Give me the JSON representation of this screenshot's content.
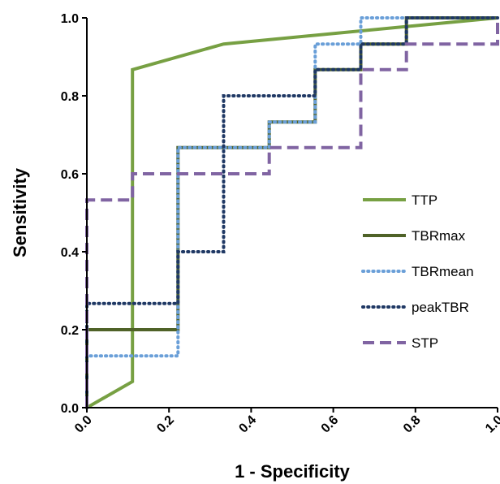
{
  "chart_data": {
    "type": "line",
    "title": "",
    "xlabel": "1 - Specificity",
    "ylabel": "Sensitivity",
    "xlim": [
      0,
      1
    ],
    "ylim": [
      0,
      1
    ],
    "xticks": [
      "0.0",
      "0.2",
      "0.4",
      "0.6",
      "0.8",
      "1.0"
    ],
    "yticks": [
      "0.0",
      "0.2",
      "0.4",
      "0.6",
      "0.8",
      "1.0"
    ],
    "grid": false,
    "legend_position": "right",
    "series": [
      {
        "name": "TTP",
        "color": "#77a043",
        "style": "solid",
        "points": [
          [
            0,
            0
          ],
          [
            0.111,
            0.067
          ],
          [
            0.111,
            0.867
          ],
          [
            0.333,
            0.933
          ],
          [
            1.0,
            1.0
          ]
        ]
      },
      {
        "name": "TBRmax",
        "color": "#4f6228",
        "style": "solid",
        "points": [
          [
            0,
            0
          ],
          [
            0,
            0.2
          ],
          [
            0.222,
            0.2
          ],
          [
            0.222,
            0.667
          ],
          [
            0.444,
            0.667
          ],
          [
            0.444,
            0.733
          ],
          [
            0.556,
            0.733
          ],
          [
            0.556,
            0.867
          ],
          [
            0.667,
            0.867
          ],
          [
            0.667,
            0.933
          ],
          [
            0.778,
            0.933
          ],
          [
            0.778,
            1.0
          ],
          [
            1.0,
            1.0
          ]
        ]
      },
      {
        "name": "TBRmean",
        "color": "#6a9fd8",
        "style": "dotted",
        "points": [
          [
            0,
            0
          ],
          [
            0,
            0.133
          ],
          [
            0.222,
            0.133
          ],
          [
            0.222,
            0.667
          ],
          [
            0.444,
            0.667
          ],
          [
            0.444,
            0.733
          ],
          [
            0.556,
            0.733
          ],
          [
            0.556,
            0.933
          ],
          [
            0.667,
            0.933
          ],
          [
            0.667,
            1.0
          ],
          [
            1.0,
            1.0
          ]
        ]
      },
      {
        "name": "peakTBR",
        "color": "#1f3864",
        "style": "dotted",
        "points": [
          [
            0,
            0
          ],
          [
            0,
            0.267
          ],
          [
            0.222,
            0.267
          ],
          [
            0.222,
            0.4
          ],
          [
            0.333,
            0.4
          ],
          [
            0.333,
            0.8
          ],
          [
            0.556,
            0.8
          ],
          [
            0.556,
            0.867
          ],
          [
            0.667,
            0.867
          ],
          [
            0.667,
            0.933
          ],
          [
            0.778,
            0.933
          ],
          [
            0.778,
            1.0
          ],
          [
            1.0,
            1.0
          ]
        ]
      },
      {
        "name": "STP",
        "color": "#8064a2",
        "style": "dashed",
        "points": [
          [
            0,
            0
          ],
          [
            0,
            0.533
          ],
          [
            0.111,
            0.533
          ],
          [
            0.111,
            0.6
          ],
          [
            0.444,
            0.6
          ],
          [
            0.444,
            0.667
          ],
          [
            0.667,
            0.667
          ],
          [
            0.667,
            0.867
          ],
          [
            0.778,
            0.867
          ],
          [
            0.778,
            0.933
          ],
          [
            1.0,
            0.933
          ],
          [
            1.0,
            1.0
          ]
        ]
      }
    ]
  }
}
